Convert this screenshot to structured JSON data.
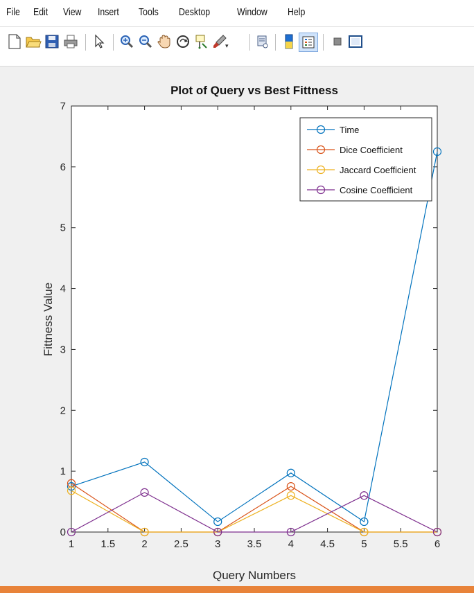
{
  "menu": [
    "File",
    "Edit",
    "View",
    "Insert",
    "Tools",
    "Desktop",
    "Window",
    "Help"
  ],
  "toolbar": {
    "icons": [
      "new-figure-icon",
      "open-file-icon",
      "save-icon",
      "print-icon",
      "pointer-icon",
      "zoom-in-icon",
      "zoom-out-icon",
      "pan-icon",
      "rotate-3d-icon",
      "data-cursor-icon",
      "brush-icon",
      "link-plot-icon",
      "colorbar-icon",
      "legend-icon",
      "hide-plot-tools-icon",
      "show-plot-tools-icon"
    ]
  },
  "colors": {
    "time": "#0072bd",
    "dice": "#d95319",
    "jaccard": "#edb120",
    "cosine": "#7e2f8e",
    "bottom_border": "#e8833a"
  },
  "chart_data": {
    "type": "line",
    "title": "Plot of Query vs Best Fittness",
    "xlabel": "Query Numbers",
    "ylabel": "Fittness Value",
    "xlim": [
      1,
      6
    ],
    "ylim": [
      0,
      7
    ],
    "xticks": [
      "1",
      "1.5",
      "2",
      "2.5",
      "3",
      "3.5",
      "4",
      "4.5",
      "5",
      "5.5",
      "6"
    ],
    "yticks": [
      "0",
      "1",
      "2",
      "3",
      "4",
      "5",
      "6",
      "7"
    ],
    "legend_position": "top-right",
    "grid": false,
    "x": [
      1,
      2,
      3,
      4,
      5,
      6
    ],
    "series": [
      {
        "name": "Time",
        "values": [
          0.75,
          1.15,
          0.17,
          0.97,
          0.17,
          6.25
        ]
      },
      {
        "name": "Dice Coefficient",
        "values": [
          0.8,
          0.0,
          0.0,
          0.75,
          0.0,
          0.0
        ]
      },
      {
        "name": "Jaccard Coefficient",
        "values": [
          0.68,
          0.0,
          0.0,
          0.6,
          0.0,
          0.0
        ]
      },
      {
        "name": "Cosine Coefficient",
        "values": [
          0.0,
          0.65,
          0.0,
          0.0,
          0.6,
          0.0
        ]
      }
    ]
  }
}
